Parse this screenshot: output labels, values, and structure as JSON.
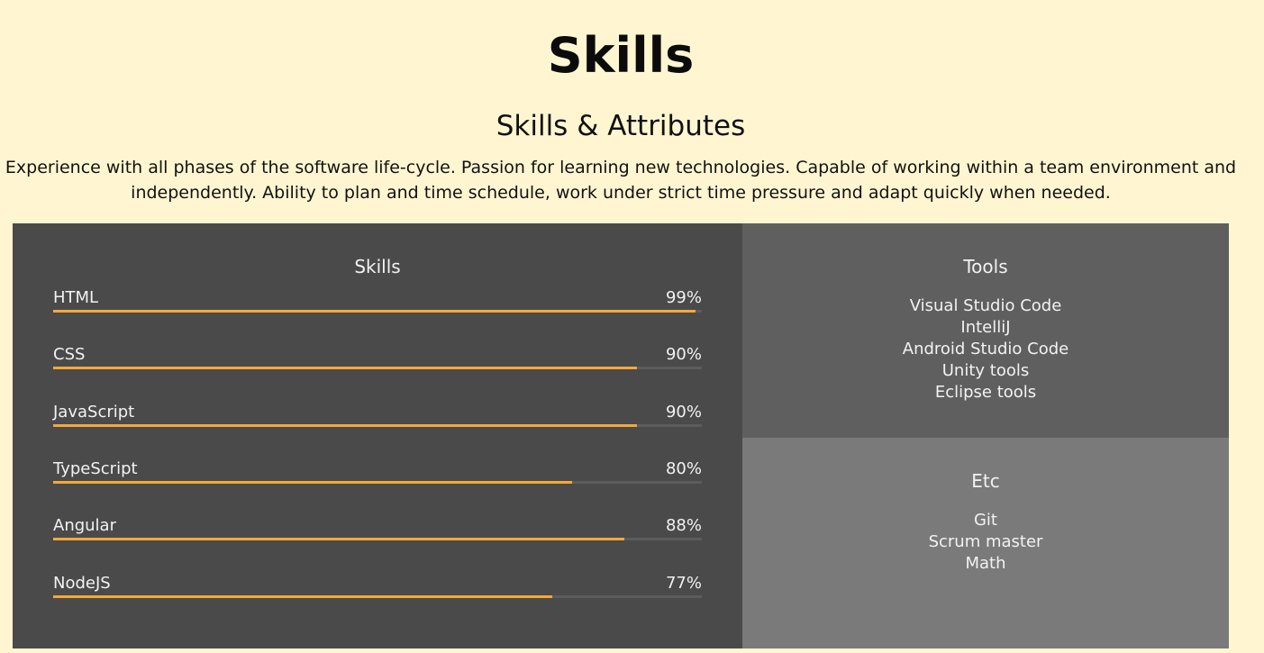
{
  "header": {
    "title": "Skills",
    "subtitle": "Skills & Attributes",
    "description_line1": "Experience with all phases of the software life-cycle. Passion for learning new technologies. Capable of working within a team environment and",
    "description_line2": "independently. Ability to plan and time schedule, work under strict time pressure and adapt quickly when needed."
  },
  "skills_panel": {
    "heading": "Skills",
    "items": [
      {
        "label": "HTML",
        "percent_label": "99%",
        "level": 0.99
      },
      {
        "label": "CSS",
        "percent_label": "90%",
        "level": 0.9
      },
      {
        "label": "JavaScript",
        "percent_label": "90%",
        "level": 0.9
      },
      {
        "label": "TypeScript",
        "percent_label": "80%",
        "level": 0.8
      },
      {
        "label": "Angular",
        "percent_label": "88%",
        "level": 0.88
      },
      {
        "label": "NodeJS",
        "percent_label": "77%",
        "level": 0.77
      }
    ]
  },
  "tools_panel": {
    "heading": "Tools",
    "items": [
      "Visual Studio Code",
      "IntelliJ",
      "Android Studio Code",
      "Unity tools",
      "Eclipse tools"
    ]
  },
  "etc_panel": {
    "heading": "Etc",
    "items": [
      "Git",
      "Scrum master",
      "Math"
    ]
  },
  "colors": {
    "background": "#fff6d1",
    "skills_panel": "#4a4a4a",
    "tools_panel": "#5f5f5f",
    "etc_panel": "#7a7a7a",
    "bar_fill": "#f4a83a",
    "bar_track": "#5c5c5c"
  }
}
